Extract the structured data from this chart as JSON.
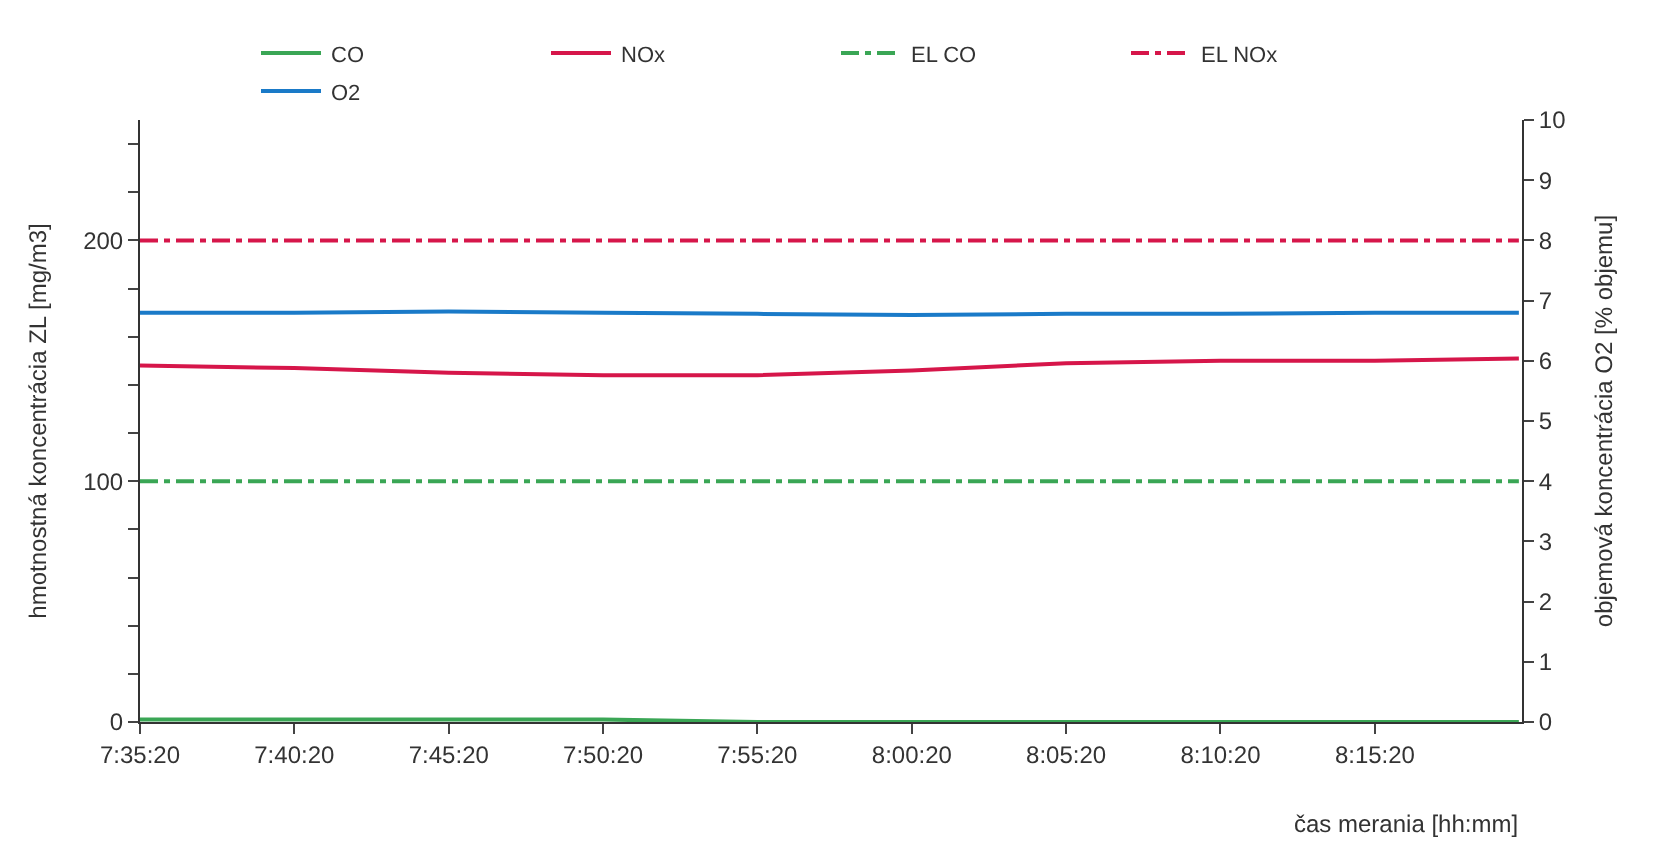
{
  "chart_data": {
    "type": "line",
    "xlabel": "čas merania [hh:mm]",
    "ylabel": "hmotnostná koncentrácia ZL [mg/m3]",
    "y2label": "objemová koncentrácia O2 [% objemu]",
    "x": [
      7.5889,
      7.6722,
      7.7556,
      7.8389,
      7.9222,
      8.0056,
      8.0889,
      8.1722,
      8.2556,
      8.3333
    ],
    "series": [
      {
        "name": "CO",
        "color": "#3aa655",
        "values": [
          1,
          1,
          1,
          1,
          0,
          0,
          0,
          0,
          0,
          0
        ],
        "line_style": "solid"
      },
      {
        "name": "NOx",
        "color": "#d6164a",
        "values": [
          148,
          147,
          145,
          144,
          144,
          146,
          149,
          150,
          150,
          151
        ],
        "line_style": "solid"
      },
      {
        "name": "EL CO",
        "color": "#3aa655",
        "values": [
          100,
          100,
          100,
          100,
          100,
          100,
          100,
          100,
          100,
          100
        ],
        "line_style": "dashdot"
      },
      {
        "name": "EL NOx",
        "color": "#d6164a",
        "values": [
          200,
          200,
          200,
          200,
          200,
          200,
          200,
          200,
          200,
          200
        ],
        "line_style": "dashdot"
      },
      {
        "name": "O2",
        "color": "#1a7ac8",
        "axis": "y2",
        "values": [
          6.8,
          6.8,
          6.82,
          6.8,
          6.78,
          6.76,
          6.78,
          6.78,
          6.8,
          6.8
        ],
        "line_style": "solid"
      }
    ],
    "xlim": [
      7.5889,
      8.335
    ],
    "xticks": [
      {
        "value": 7.5889,
        "label": "7:35:20"
      },
      {
        "value": 7.6722,
        "label": "7:40:20"
      },
      {
        "value": 7.7556,
        "label": "7:45:20"
      },
      {
        "value": 7.8389,
        "label": "7:50:20"
      },
      {
        "value": 7.9222,
        "label": "7:55:20"
      },
      {
        "value": 8.0056,
        "label": "8:00:20"
      },
      {
        "value": 8.0889,
        "label": "8:05:20"
      },
      {
        "value": 8.1722,
        "label": "8:10:20"
      },
      {
        "value": 8.2556,
        "label": "8:15:20"
      }
    ],
    "ylim": [
      0,
      250
    ],
    "yticks": [
      0,
      {
        "value": 20,
        "label": null
      },
      {
        "value": 40,
        "label": null
      },
      {
        "value": 60,
        "label": null
      },
      {
        "value": 80,
        "label": null
      },
      100,
      {
        "value": 120,
        "label": null
      },
      {
        "value": 140,
        "label": null
      },
      {
        "value": 160,
        "label": null
      },
      {
        "value": 180,
        "label": null
      },
      200,
      {
        "value": 220,
        "label": null
      },
      {
        "value": 240,
        "label": null
      }
    ],
    "y2lim": [
      0,
      10
    ],
    "y2ticks": [
      0,
      1,
      2,
      3,
      4,
      5,
      6,
      7,
      8,
      9,
      10
    ],
    "legend": "top",
    "marker": "none"
  }
}
